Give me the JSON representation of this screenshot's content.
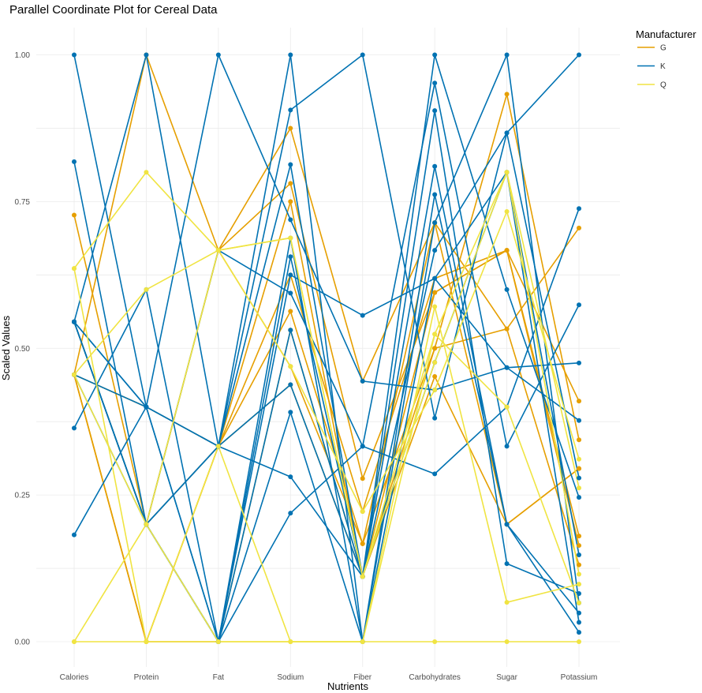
{
  "chart_data": {
    "type": "parallel-coordinates",
    "title": "Parallel Coordinate Plot for Cereal Data",
    "xlabel": "Nutrients",
    "ylabel": "Scaled Values",
    "axes": [
      "Calories",
      "Protein",
      "Fat",
      "Sodium",
      "Fiber",
      "Carbohydrates",
      "Sugar",
      "Potassium"
    ],
    "ylim": [
      0,
      1
    ],
    "yticks": [
      "0.00",
      "0.25",
      "0.50",
      "0.75",
      "1.00"
    ],
    "grid": true,
    "legend": {
      "title": "Manufacturer",
      "placement": "top-right",
      "entries": [
        {
          "name": "G",
          "color": "#E69F00"
        },
        {
          "name": "K",
          "color": "#0072B2"
        },
        {
          "name": "Q",
          "color": "#F0E442"
        }
      ]
    },
    "series": [
      {
        "group": "G",
        "values": [
          0.727,
          0.2,
          0.667,
          0.875,
          0.444,
          0.714,
          0.533,
          0.705
        ]
      },
      {
        "group": "G",
        "values": [
          0.455,
          1.0,
          0.667,
          0.781,
          0.278,
          0.595,
          0.667,
          0.41
        ]
      },
      {
        "group": "G",
        "values": [
          0.455,
          0.4,
          0.333,
          0.563,
          0.167,
          0.5,
          0.933,
          0.344
        ]
      },
      {
        "group": "G",
        "values": [
          0.455,
          0.0,
          0.333,
          0.438,
          0.111,
          0.452,
          0.2,
          0.295
        ]
      },
      {
        "group": "G",
        "values": [
          0.545,
          0.2,
          0.333,
          0.625,
          0.222,
          0.619,
          0.667,
          0.18
        ]
      },
      {
        "group": "G",
        "values": [
          0.455,
          0.0,
          0.0,
          0.531,
          0.111,
          0.595,
          0.667,
          0.164
        ]
      },
      {
        "group": "G",
        "values": [
          0.455,
          0.0,
          0.333,
          0.75,
          0.111,
          0.5,
          0.533,
          0.131
        ]
      },
      {
        "group": "G",
        "values": [
          0.545,
          0.2,
          0.667,
          0.469,
          0.167,
          0.714,
          0.2,
          0.295
        ]
      },
      {
        "group": "K",
        "values": [
          0.545,
          1.0,
          0.333,
          0.906,
          1.0,
          0.381,
          0.867,
          1.0
        ]
      },
      {
        "group": "K",
        "values": [
          0.364,
          0.6,
          0.0,
          0.625,
          0.556,
          0.619,
          0.467,
          0.475
        ]
      },
      {
        "group": "K",
        "values": [
          1.0,
          0.4,
          1.0,
          0.719,
          0.444,
          0.429,
          0.467,
          0.377
        ]
      },
      {
        "group": "K",
        "values": [
          0.818,
          0.2,
          0.667,
          0.594,
          0.333,
          0.952,
          0.333,
          0.574
        ]
      },
      {
        "group": "K",
        "values": [
          0.182,
          0.4,
          0.0,
          0.219,
          0.333,
          0.286,
          0.4,
          0.738
        ]
      },
      {
        "group": "K",
        "values": [
          0.545,
          0.2,
          0.333,
          0.813,
          0.111,
          1.0,
          0.6,
          0.246
        ]
      },
      {
        "group": "K",
        "values": [
          0.455,
          0.4,
          0.0,
          0.656,
          0.111,
          0.905,
          0.133,
          0.082
        ]
      },
      {
        "group": "K",
        "values": [
          0.545,
          0.2,
          0.0,
          0.531,
          0.111,
          0.81,
          0.2,
          0.049
        ]
      },
      {
        "group": "K",
        "values": [
          0.545,
          0.4,
          0.333,
          0.281,
          0.111,
          0.667,
          0.867,
          0.279
        ]
      },
      {
        "group": "K",
        "values": [
          0.545,
          0.2,
          0.0,
          0.391,
          0.0,
          0.762,
          0.2,
          0.016
        ]
      },
      {
        "group": "K",
        "values": [
          0.545,
          0.4,
          0.333,
          1.0,
          0.0,
          0.714,
          1.0,
          0.066
        ]
      },
      {
        "group": "K",
        "values": [
          0.455,
          0.2,
          0.0,
          0.688,
          0.0,
          0.619,
          0.8,
          0.033
        ]
      },
      {
        "group": "K",
        "values": [
          0.545,
          0.2,
          0.333,
          0.438,
          0.111,
          0.476,
          0.8,
          0.148
        ]
      },
      {
        "group": "Q",
        "values": [
          0.636,
          0.8,
          0.667,
          0.688,
          0.111,
          0.524,
          0.8,
          0.262
        ]
      },
      {
        "group": "Q",
        "values": [
          0.455,
          0.6,
          0.667,
          0.469,
          0.222,
          0.429,
          0.733,
          0.311
        ]
      },
      {
        "group": "Q",
        "values": [
          0.0,
          0.2,
          0.0,
          0.0,
          0.0,
          0.571,
          0.067,
          0.098
        ]
      },
      {
        "group": "Q",
        "values": [
          0.636,
          0.0,
          0.333,
          0.0,
          0.0,
          0.0,
          0.0,
          0.0
        ]
      },
      {
        "group": "Q",
        "values": [
          0.0,
          0.0,
          0.0,
          0.0,
          0.0,
          0.524,
          0.4,
          0.066
        ]
      },
      {
        "group": "Q",
        "values": [
          0.455,
          0.2,
          0.667,
          0.688,
          0.111,
          0.476,
          0.8,
          0.115
        ]
      }
    ]
  }
}
